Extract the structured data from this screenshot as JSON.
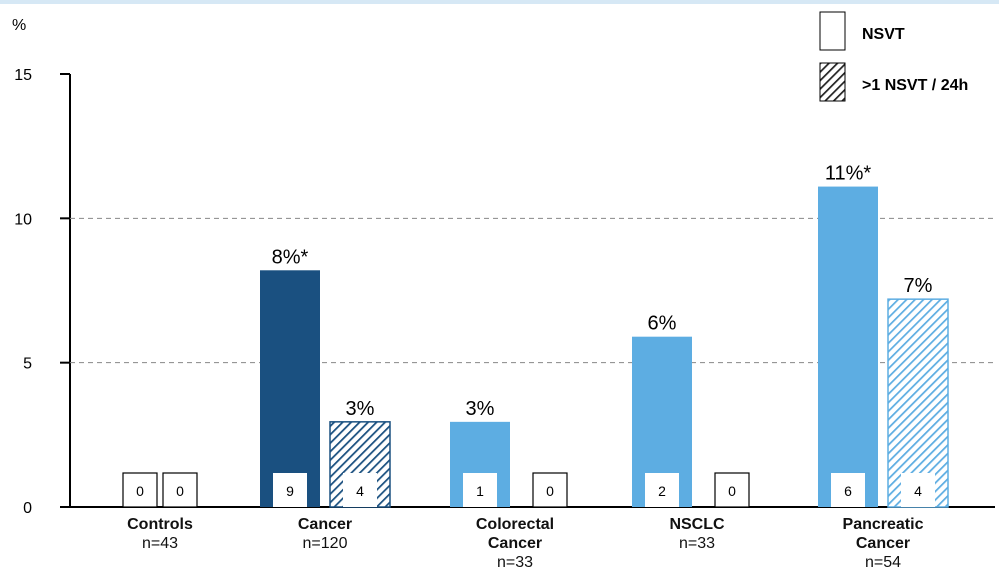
{
  "chart_data": {
    "type": "bar",
    "y_label": "%",
    "categories": [
      "Controls",
      "Cancer",
      "Colorectal Cancer",
      "NSCLC",
      "Pancreatic Cancer"
    ],
    "category_notes": [
      "n=43",
      "n=120",
      "n=33",
      "n=33",
      "n=54"
    ],
    "bar_colors": [
      "#5dade2",
      "#1a5080",
      "#5dade2",
      "#5dade2",
      "#5dade2"
    ],
    "series": [
      {
        "name": "NSVT",
        "pattern": "solid",
        "values": [
          0,
          8.2,
          2.95,
          5.9,
          11.1
        ],
        "value_labels": [
          null,
          "8%*",
          "3%",
          "6%",
          "11%*"
        ],
        "counts": [
          0,
          9,
          1,
          2,
          6
        ]
      },
      {
        "name": ">1 NSVT / 24h",
        "pattern": "hatched",
        "values": [
          0,
          2.95,
          0,
          0,
          7.2
        ],
        "value_labels": [
          null,
          "3%",
          null,
          null,
          "7%"
        ],
        "counts": [
          0,
          4,
          0,
          0,
          4
        ]
      }
    ],
    "ylim": [
      0,
      15
    ],
    "yticks": [
      0,
      5,
      10,
      15
    ],
    "grid": true
  }
}
